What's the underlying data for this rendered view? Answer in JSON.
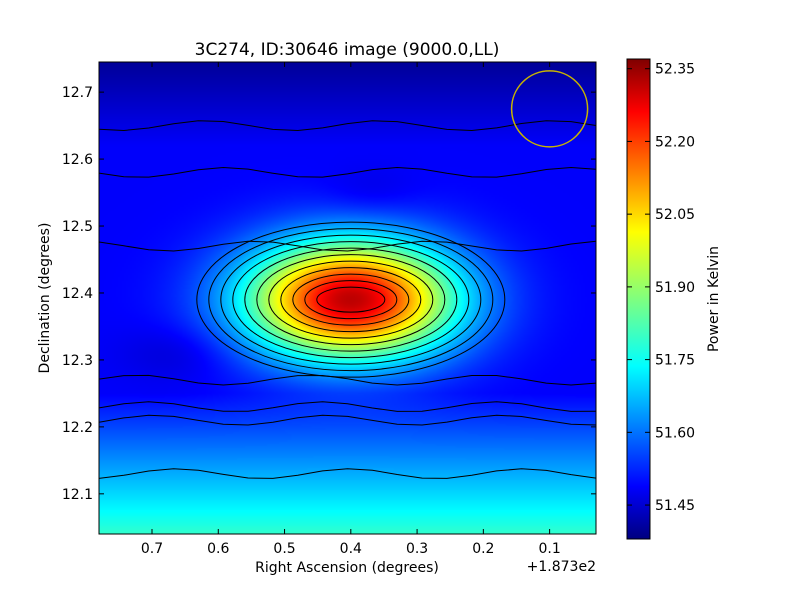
{
  "chart_data": {
    "type": "heatmap",
    "title": "3C274, ID:30646 image (9000.0,LL)",
    "xlabel": "Right Ascension (degrees)",
    "ylabel": "Declination (degrees)",
    "x_offset_label": "+1.873e2",
    "xlim": [
      0.78,
      0.03
    ],
    "ylim": [
      12.04,
      12.745
    ],
    "x_ticks": [
      {
        "value": 0.7,
        "label": "0.7"
      },
      {
        "value": 0.6,
        "label": "0.6"
      },
      {
        "value": 0.5,
        "label": "0.5"
      },
      {
        "value": 0.4,
        "label": "0.4"
      },
      {
        "value": 0.3,
        "label": "0.3"
      },
      {
        "value": 0.2,
        "label": "0.2"
      },
      {
        "value": 0.1,
        "label": "0.1"
      }
    ],
    "y_ticks": [
      {
        "value": 12.1,
        "label": "12.1"
      },
      {
        "value": 12.2,
        "label": "12.2"
      },
      {
        "value": 12.3,
        "label": "12.3"
      },
      {
        "value": 12.4,
        "label": "12.4"
      },
      {
        "value": 12.5,
        "label": "12.5"
      },
      {
        "value": 12.6,
        "label": "12.6"
      },
      {
        "value": 12.7,
        "label": "12.7"
      }
    ],
    "colorbar": {
      "label": "Power in Kelvin",
      "range": [
        51.38,
        52.37
      ],
      "ticks": [
        {
          "value": 51.45,
          "label": "51.45"
        },
        {
          "value": 51.6,
          "label": "51.60"
        },
        {
          "value": 51.75,
          "label": "51.75"
        },
        {
          "value": 51.9,
          "label": "51.90"
        },
        {
          "value": 52.05,
          "label": "52.05"
        },
        {
          "value": 52.2,
          "label": "52.20"
        },
        {
          "value": 52.35,
          "label": "52.35"
        }
      ]
    },
    "peak": {
      "ra": 0.4,
      "dec": 12.39,
      "value": 52.36
    },
    "contours": "black",
    "beam_circle": {
      "ra": 0.1,
      "dec": 12.675,
      "color": "#c8b400"
    },
    "grid": false,
    "colormap": "jet"
  }
}
